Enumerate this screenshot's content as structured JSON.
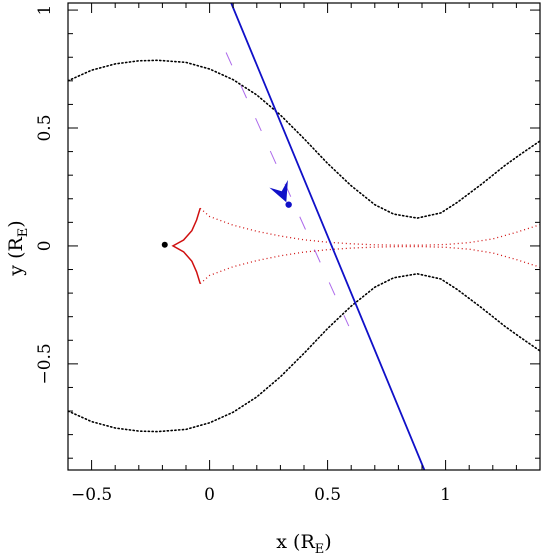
{
  "chart_data": {
    "type": "scatter",
    "xlabel": "x (R",
    "xlabel_sub": "E",
    "xlabel_close": ")",
    "ylabel": "y (R",
    "ylabel_sub": "E",
    "ylabel_close": ")",
    "xlim": [
      -0.6,
      1.4
    ],
    "ylim": [
      -0.95,
      1.03
    ],
    "x_ticks": [
      {
        "value": -0.5,
        "label": "−0.5"
      },
      {
        "value": 0,
        "label": "0"
      },
      {
        "value": 0.5,
        "label": "0.5"
      },
      {
        "value": 1,
        "label": "1"
      }
    ],
    "y_ticks": [
      {
        "value": -0.5,
        "label": "−0.5"
      },
      {
        "value": 0,
        "label": "0"
      },
      {
        "value": 0.5,
        "label": "0.5"
      },
      {
        "value": 1,
        "label": "1"
      }
    ],
    "grid": false,
    "colors": {
      "critical_curve": "#000000",
      "caustic": "#d01010",
      "trajectory": "#1010c8",
      "trajectory_highlight": "#8a2be2",
      "point": "#000000"
    },
    "critical_curve_upper": [
      [
        -0.6,
        0.7
      ],
      [
        -0.5,
        0.745
      ],
      [
        -0.4,
        0.772
      ],
      [
        -0.3,
        0.785
      ],
      [
        -0.22,
        0.787
      ],
      [
        -0.1,
        0.778
      ],
      [
        0.0,
        0.75
      ],
      [
        0.1,
        0.705
      ],
      [
        0.2,
        0.64
      ],
      [
        0.3,
        0.555
      ],
      [
        0.4,
        0.455
      ],
      [
        0.5,
        0.35
      ],
      [
        0.6,
        0.255
      ],
      [
        0.7,
        0.175
      ],
      [
        0.78,
        0.135
      ],
      [
        0.88,
        0.118
      ],
      [
        0.98,
        0.14
      ],
      [
        1.05,
        0.185
      ],
      [
        1.15,
        0.26
      ],
      [
        1.25,
        0.34
      ],
      [
        1.32,
        0.39
      ],
      [
        1.4,
        0.445
      ]
    ],
    "critical_curve_lower": [
      [
        -0.6,
        -0.7
      ],
      [
        -0.5,
        -0.745
      ],
      [
        -0.4,
        -0.772
      ],
      [
        -0.3,
        -0.785
      ],
      [
        -0.22,
        -0.787
      ],
      [
        -0.1,
        -0.778
      ],
      [
        0.0,
        -0.75
      ],
      [
        0.1,
        -0.705
      ],
      [
        0.2,
        -0.64
      ],
      [
        0.3,
        -0.555
      ],
      [
        0.4,
        -0.455
      ],
      [
        0.5,
        -0.35
      ],
      [
        0.6,
        -0.255
      ],
      [
        0.7,
        -0.175
      ],
      [
        0.78,
        -0.135
      ],
      [
        0.88,
        -0.118
      ],
      [
        0.98,
        -0.14
      ],
      [
        1.05,
        -0.185
      ],
      [
        1.15,
        -0.26
      ],
      [
        1.25,
        -0.34
      ],
      [
        1.32,
        -0.39
      ],
      [
        1.4,
        -0.445
      ]
    ],
    "caustic_upper": [
      [
        -0.04,
        0.16
      ],
      [
        0.0,
        0.125
      ],
      [
        0.1,
        0.088
      ],
      [
        0.2,
        0.062
      ],
      [
        0.3,
        0.042
      ],
      [
        0.4,
        0.026
      ],
      [
        0.5,
        0.016
      ],
      [
        0.6,
        0.009
      ],
      [
        0.7,
        0.005
      ],
      [
        0.8,
        0.003
      ],
      [
        0.9,
        0.003
      ],
      [
        1.0,
        0.006
      ],
      [
        1.1,
        0.014
      ],
      [
        1.2,
        0.03
      ],
      [
        1.3,
        0.058
      ],
      [
        1.4,
        0.09
      ]
    ],
    "caustic_lower": [
      [
        -0.04,
        -0.16
      ],
      [
        0.0,
        -0.125
      ],
      [
        0.1,
        -0.088
      ],
      [
        0.2,
        -0.062
      ],
      [
        0.3,
        -0.042
      ],
      [
        0.4,
        -0.026
      ],
      [
        0.5,
        -0.016
      ],
      [
        0.6,
        -0.009
      ],
      [
        0.7,
        -0.005
      ],
      [
        0.8,
        -0.003
      ],
      [
        0.9,
        -0.003
      ],
      [
        1.0,
        -0.006
      ],
      [
        1.1,
        -0.014
      ],
      [
        1.2,
        -0.03
      ],
      [
        1.3,
        -0.058
      ],
      [
        1.4,
        -0.09
      ]
    ],
    "caustic_cusp_left": [
      [
        -0.04,
        0.16
      ],
      [
        -0.055,
        0.11
      ],
      [
        -0.075,
        0.065
      ],
      [
        -0.11,
        0.025
      ],
      [
        -0.155,
        0.0
      ],
      [
        -0.11,
        -0.025
      ],
      [
        -0.075,
        -0.065
      ],
      [
        -0.055,
        -0.11
      ],
      [
        -0.04,
        -0.16
      ]
    ],
    "trajectory": [
      [
        0.05,
        1.13
      ],
      [
        0.91,
        -0.95
      ]
    ],
    "trajectory_highlight": [
      [
        0.07,
        0.82
      ],
      [
        0.59,
        -0.34
      ]
    ],
    "lens_point": {
      "x": -0.19,
      "y": 0.005
    },
    "source_point": {
      "x": 0.335,
      "y": 0.175
    },
    "arrow_tip": {
      "x": 0.325,
      "y": 0.185
    }
  }
}
